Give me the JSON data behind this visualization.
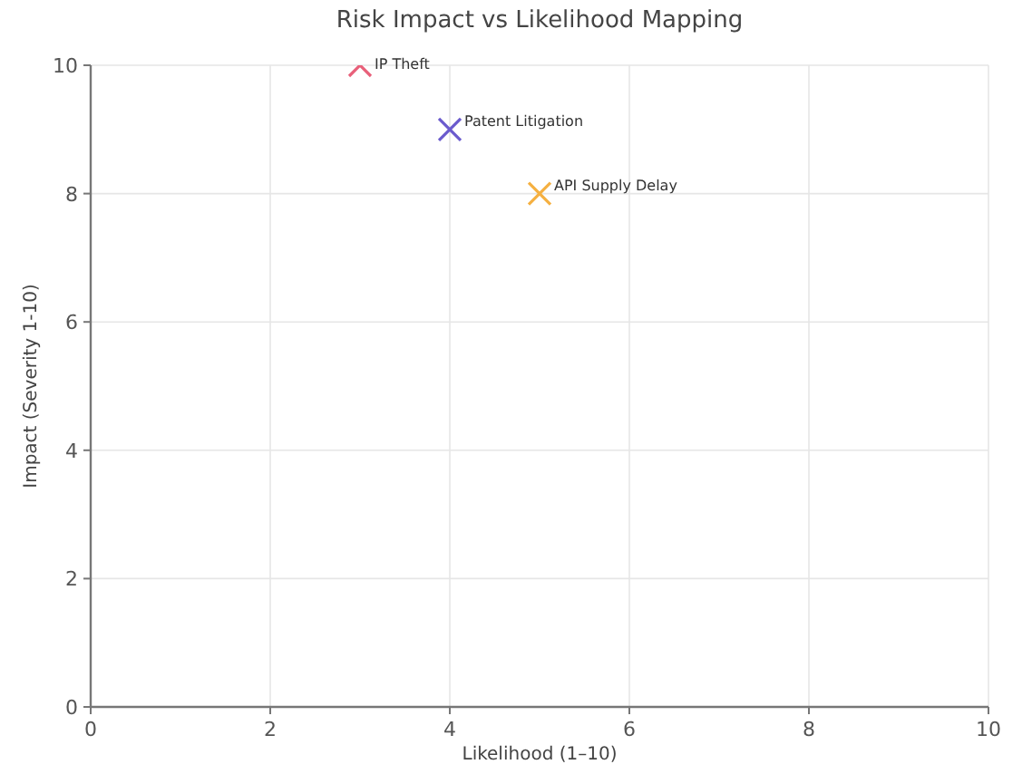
{
  "chart_data": {
    "type": "scatter",
    "title": "Risk Impact vs Likelihood Mapping",
    "xlabel": "Likelihood (1–10)",
    "ylabel": "Impact (Severity 1-10)",
    "xlim": [
      0,
      10
    ],
    "ylim": [
      0,
      10
    ],
    "xticks": [
      0,
      2,
      4,
      6,
      8,
      10
    ],
    "yticks": [
      0,
      2,
      4,
      6,
      8,
      10
    ],
    "grid": true,
    "marker": "cross",
    "series": [
      {
        "name": "IP Theft",
        "color": "#e8607a",
        "x": [
          3
        ],
        "values": [
          10
        ]
      },
      {
        "name": "Patent Litigation",
        "color": "#6a5acd",
        "x": [
          4
        ],
        "values": [
          9
        ]
      },
      {
        "name": "API Supply Delay",
        "color": "#f5b041",
        "x": [
          5
        ],
        "values": [
          8
        ]
      }
    ]
  }
}
